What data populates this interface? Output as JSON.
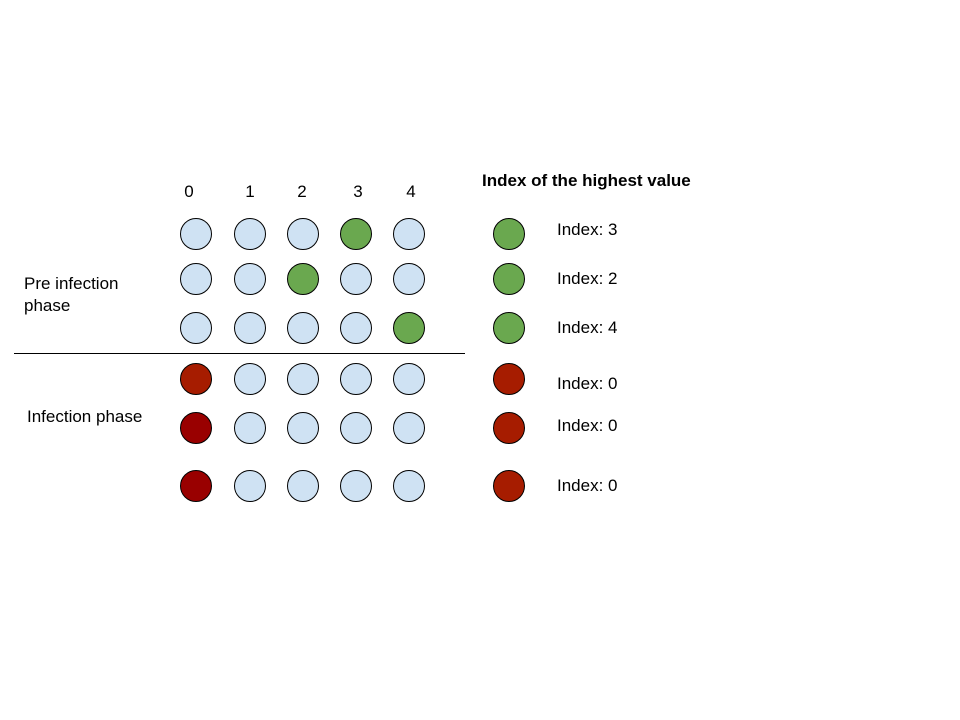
{
  "column_labels": [
    "0",
    "1",
    "2",
    "3",
    "4"
  ],
  "phases": {
    "pre_infection": "Pre infection\nphase",
    "infection": "Infection phase"
  },
  "colors": {
    "neutral": "#cfe2f3",
    "green": "#6aa84f",
    "red": "#a61c00",
    "dark_red": "#990000"
  },
  "grid_rows": [
    [
      "neutral",
      "neutral",
      "neutral",
      "green",
      "neutral"
    ],
    [
      "neutral",
      "neutral",
      "green",
      "neutral",
      "neutral"
    ],
    [
      "neutral",
      "neutral",
      "neutral",
      "neutral",
      "green"
    ],
    [
      "red",
      "neutral",
      "neutral",
      "neutral",
      "neutral"
    ],
    [
      "dark_red",
      "neutral",
      "neutral",
      "neutral",
      "neutral"
    ],
    [
      "dark_red",
      "neutral",
      "neutral",
      "neutral",
      "neutral"
    ]
  ],
  "legend": {
    "title": "Index of the highest value",
    "items": [
      {
        "color": "green",
        "label": "Index: 3"
      },
      {
        "color": "green",
        "label": "Index: 2"
      },
      {
        "color": "green",
        "label": "Index: 4"
      },
      {
        "color": "red",
        "label": "Index: 0"
      },
      {
        "color": "red",
        "label": "Index: 0"
      },
      {
        "color": "red",
        "label": "Index: 0"
      }
    ]
  }
}
